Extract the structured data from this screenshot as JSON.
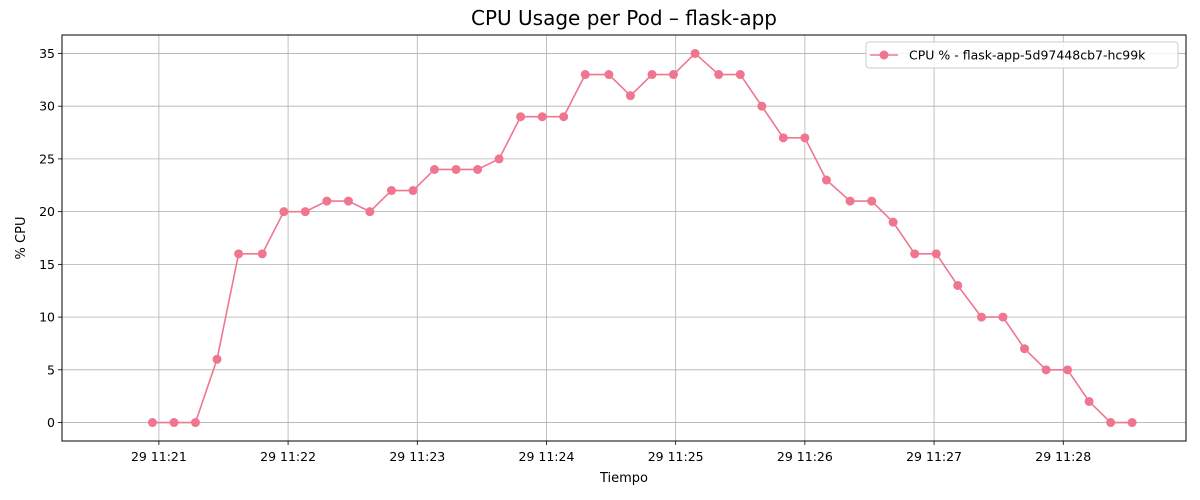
{
  "chart_data": {
    "type": "line",
    "title": "CPU Usage per Pod – flask-app",
    "xlabel": "Tiempo",
    "ylabel": "% CPU",
    "ylim": [
      -1.75,
      36.75
    ],
    "yticks": [
      0,
      5,
      10,
      15,
      20,
      25,
      30,
      35
    ],
    "x_ticks": [
      "29 11:21",
      "29 11:22",
      "29 11:23",
      "29 11:24",
      "29 11:25",
      "29 11:26",
      "29 11:27",
      "29 11:28"
    ],
    "x_unit": "minutes past 11:21 on day 29",
    "grid": true,
    "legend_position": "top-right",
    "series": [
      {
        "name": "CPU % - flask-app-5d97448cb7-hc99k",
        "color": "#f07690",
        "x": [
          -0.05,
          0.117,
          0.283,
          0.45,
          0.617,
          0.8,
          0.967,
          1.133,
          1.3,
          1.467,
          1.633,
          1.8,
          1.967,
          2.133,
          2.3,
          2.467,
          2.633,
          2.8,
          2.967,
          3.133,
          3.3,
          3.483,
          3.65,
          3.817,
          3.983,
          4.15,
          4.333,
          4.5,
          4.667,
          4.833,
          5.0,
          5.167,
          5.35,
          5.517,
          5.683,
          5.85,
          6.017,
          6.183,
          6.367,
          6.533,
          6.7,
          6.867,
          7.033,
          7.2,
          7.367,
          7.533
        ],
        "values": [
          0,
          0,
          0,
          6,
          16,
          16,
          20,
          20,
          21,
          21,
          20,
          22,
          22,
          24,
          24,
          24,
          25,
          29,
          29,
          29,
          33,
          33,
          31,
          33,
          33,
          35,
          33,
          33,
          30,
          27,
          27,
          23,
          21,
          21,
          19,
          16,
          16,
          13,
          10,
          10,
          7,
          5,
          5,
          2,
          0,
          0
        ]
      }
    ]
  }
}
